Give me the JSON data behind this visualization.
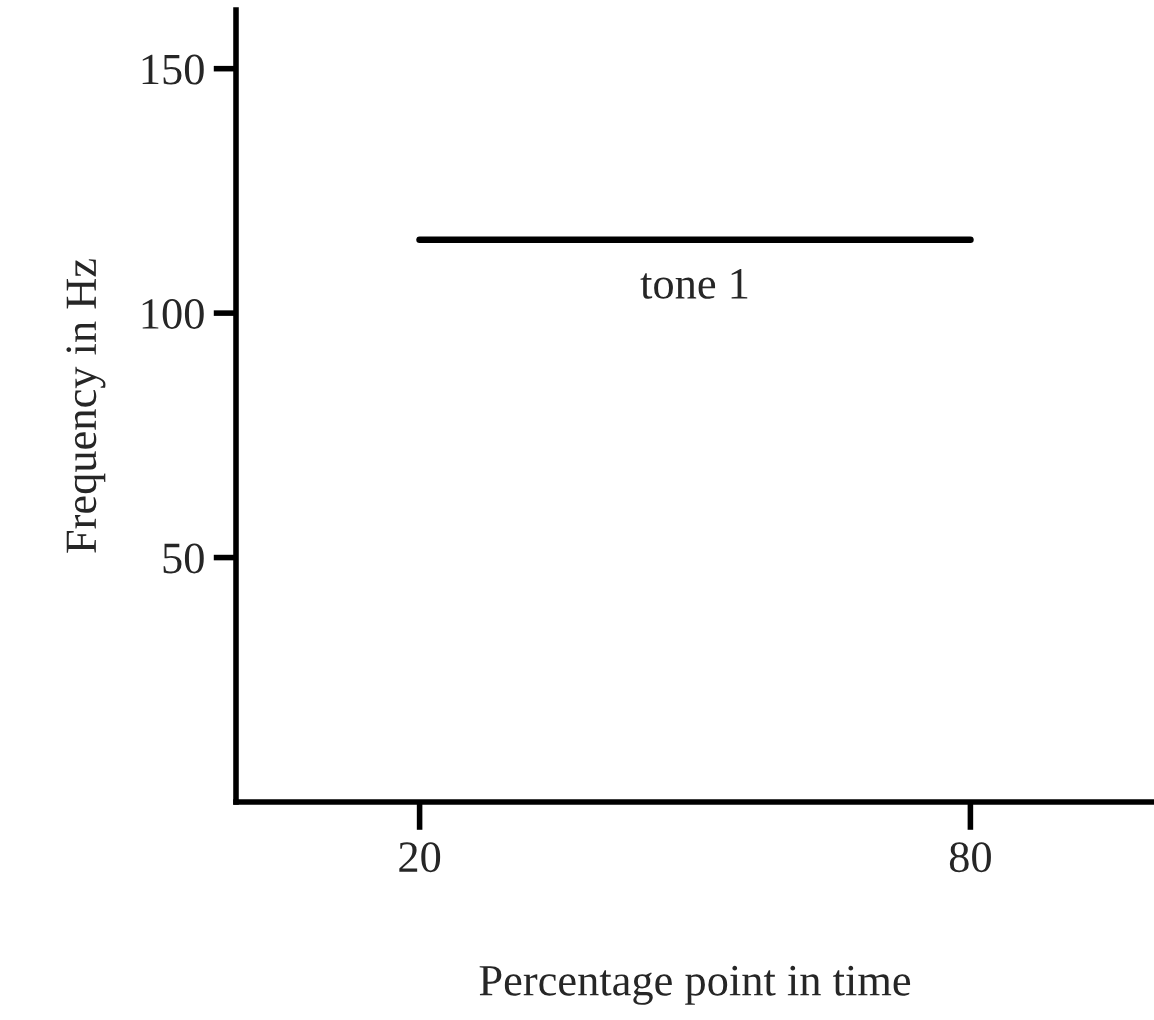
{
  "chart_data": {
    "type": "line",
    "xlabel": "Percentage point in time",
    "ylabel": "Frequency in Hz",
    "series": [
      {
        "color": "#000000",
        "x": [
          20,
          80
        ],
        "values": [
          115,
          115
        ]
      }
    ],
    "xlim": [
      0,
      100
    ],
    "ylim": [
      0,
      162
    ],
    "xticks": [
      20,
      80
    ],
    "yticks": [
      50,
      100,
      150
    ],
    "annotations": [
      {
        "text": "tone 1",
        "x": 50,
        "y": 115
      }
    ],
    "grid": false,
    "marker": "none",
    "line_style": "solid"
  }
}
